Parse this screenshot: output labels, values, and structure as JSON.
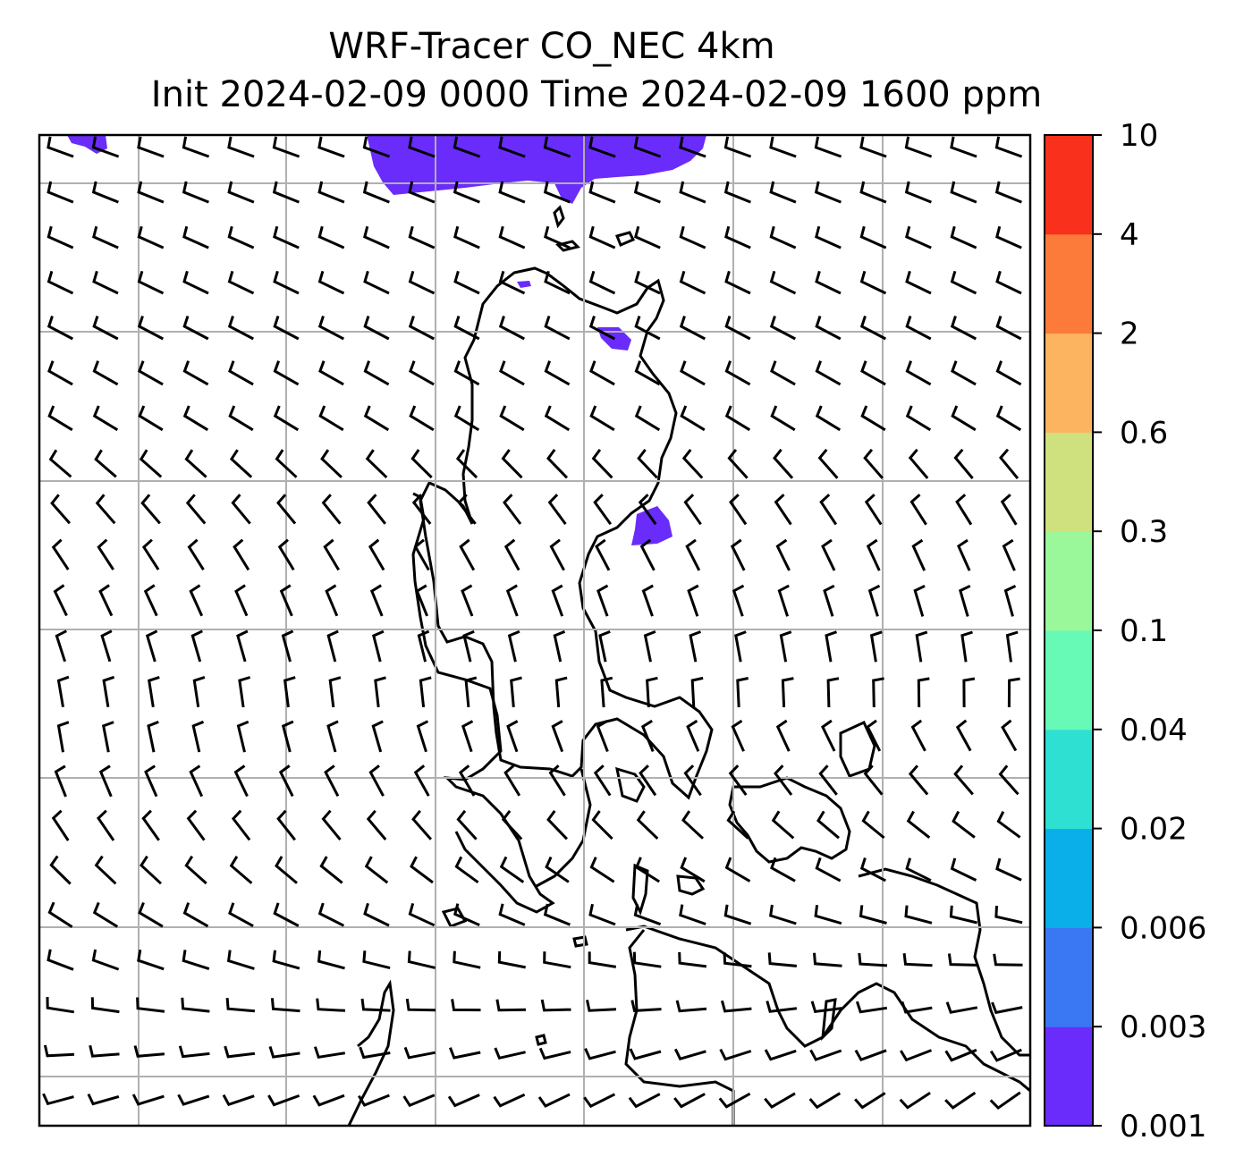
{
  "title_line1": "WRF-Tracer CO_NEC 4km",
  "title_line2": "Init 2024-02-09 0000 Time 2024-02-09 1600 ppm",
  "colorbar": {
    "levels": [
      "0.001",
      "0.003",
      "0.006",
      "0.02",
      "0.04",
      "0.1",
      "0.3",
      "0.6",
      "2",
      "4",
      "10"
    ],
    "colors": [
      "#6a2cfb",
      "#3a78f3",
      "#0aaee8",
      "#2ee0d2",
      "#66fab6",
      "#9af79a",
      "#cfe07f",
      "#fcb460",
      "#fc7a3a",
      "#f8301c"
    ]
  },
  "plume_color": "#6a2cfb",
  "gridline_color": "#b0b0b0"
}
